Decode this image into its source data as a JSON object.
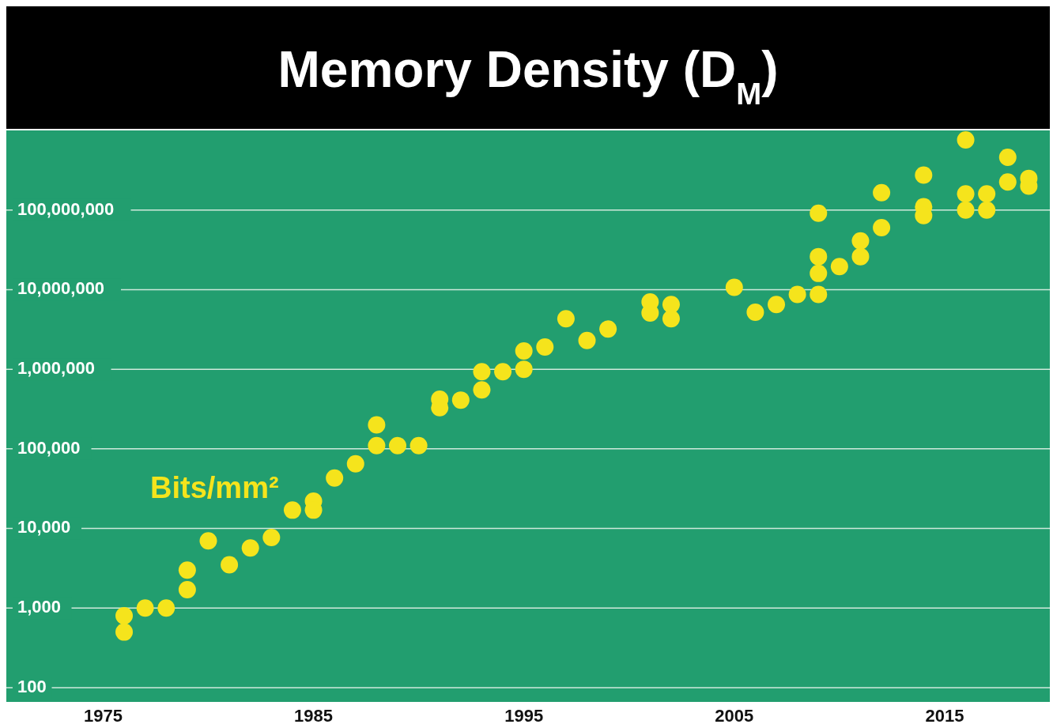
{
  "chart_data": {
    "type": "scatter",
    "title": "Memory Density (D$_{M}$)",
    "ylabel": "Bits/mm²",
    "log": "y",
    "grid": "y",
    "marker": "circle",
    "xlim": [
      1970.4,
      2020
    ],
    "xticks": [
      1975,
      1985,
      1995,
      2005,
      2015
    ],
    "ylim": [
      100,
      1000000000
    ],
    "yticks": [
      {
        "value": 100,
        "label": "100"
      },
      {
        "value": 1000,
        "label": "1,000"
      },
      {
        "value": 10000,
        "label": "10,000"
      },
      {
        "value": 100000,
        "label": "100,000"
      },
      {
        "value": 1000000,
        "label": "1,000,000"
      },
      {
        "value": 10000000,
        "label": "10,000,000"
      },
      {
        "value": 100000000,
        "label": "100,000,000"
      }
    ],
    "series": [
      {
        "color": "#f5e41c",
        "x": [
          1976,
          1976,
          1977,
          1978,
          1979,
          1979,
          1980,
          1981,
          1982,
          1983,
          1984,
          1985,
          1985,
          1986,
          1987,
          1988,
          1988,
          1989,
          1990,
          1991,
          1991,
          1992,
          1993,
          1993,
          1994,
          1995,
          1995,
          1996,
          1997,
          1998,
          1999,
          2001,
          2001,
          2002,
          2002,
          2005,
          2006,
          2007,
          2008,
          2009,
          2009,
          2009,
          2009,
          2010,
          2011,
          2011,
          2012,
          2012,
          2014,
          2014,
          2014,
          2016,
          2016,
          2016,
          2017,
          2017,
          2018,
          2018,
          2019,
          2019
        ],
        "values": [
          800,
          500,
          1000,
          1000,
          3000,
          1700,
          7000,
          3500,
          5700,
          7700,
          17000,
          22000,
          17000,
          43000,
          65000,
          200000,
          110000,
          110000,
          110000,
          420000,
          330000,
          410000,
          930000,
          550000,
          930000,
          1700000,
          1000000,
          1900000,
          4300000,
          2300000,
          3200000,
          7000000,
          5100000,
          6500000,
          4300000,
          10700000,
          5200000,
          6500000,
          8700000,
          91000000,
          26000000,
          16000000,
          8700000,
          19500000,
          41000000,
          26000000,
          165000000,
          60000000,
          275000000,
          110000000,
          85000000,
          760000000,
          160000000,
          100000000,
          160000000,
          100000000,
          460000000,
          225000000,
          250000000,
          200000000
        ]
      }
    ]
  }
}
